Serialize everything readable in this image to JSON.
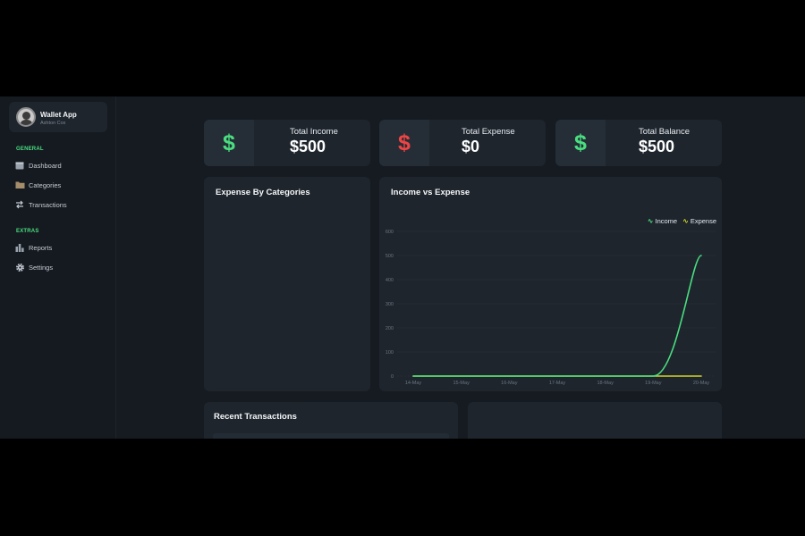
{
  "profile": {
    "name": "Wallet App",
    "subtitle": "Ashton Cox"
  },
  "sidebar": {
    "general_title": "GENERAL",
    "extras_title": "EXTRAS",
    "items": [
      {
        "label": "Dashboard",
        "icon": "calendar-icon"
      },
      {
        "label": "Categories",
        "icon": "folder-icon"
      },
      {
        "label": "Transactions",
        "icon": "transfer-icon"
      },
      {
        "label": "Reports",
        "icon": "bar-chart-icon"
      },
      {
        "label": "Settings",
        "icon": "gear-icon"
      }
    ]
  },
  "stats": [
    {
      "label": "Total Income",
      "value": "$500",
      "symbol": "$",
      "color": "#4ade80"
    },
    {
      "label": "Total Expense",
      "value": "$0",
      "symbol": "$",
      "color": "#ef4444"
    },
    {
      "label": "Total Balance",
      "value": "$500",
      "symbol": "$",
      "color": "#4ade80"
    }
  ],
  "expense_card": {
    "title": "Expense By Categories"
  },
  "income_card": {
    "title": "Income vs Expense"
  },
  "recent": {
    "title": "Recent Transactions"
  },
  "colors": {
    "accent": "#4ade80",
    "expense": "#ef4444",
    "expense_line": "#d4d62a",
    "card": "#1e252d"
  },
  "chart_data": {
    "type": "line",
    "title": "Income vs Expense",
    "x": [
      "14-May",
      "15-May",
      "16-May",
      "17-May",
      "18-May",
      "19-May",
      "20-May"
    ],
    "series": [
      {
        "name": "Income",
        "color": "#4ade80",
        "values": [
          0,
          0,
          0,
          0,
          0,
          0,
          500
        ]
      },
      {
        "name": "Expense",
        "color": "#d4d62a",
        "values": [
          0,
          0,
          0,
          0,
          0,
          0,
          0
        ]
      }
    ],
    "yticks": [
      0,
      100,
      200,
      300,
      400,
      500,
      600
    ],
    "ylim": [
      0,
      600
    ],
    "grid": true,
    "legend": "top-right"
  }
}
